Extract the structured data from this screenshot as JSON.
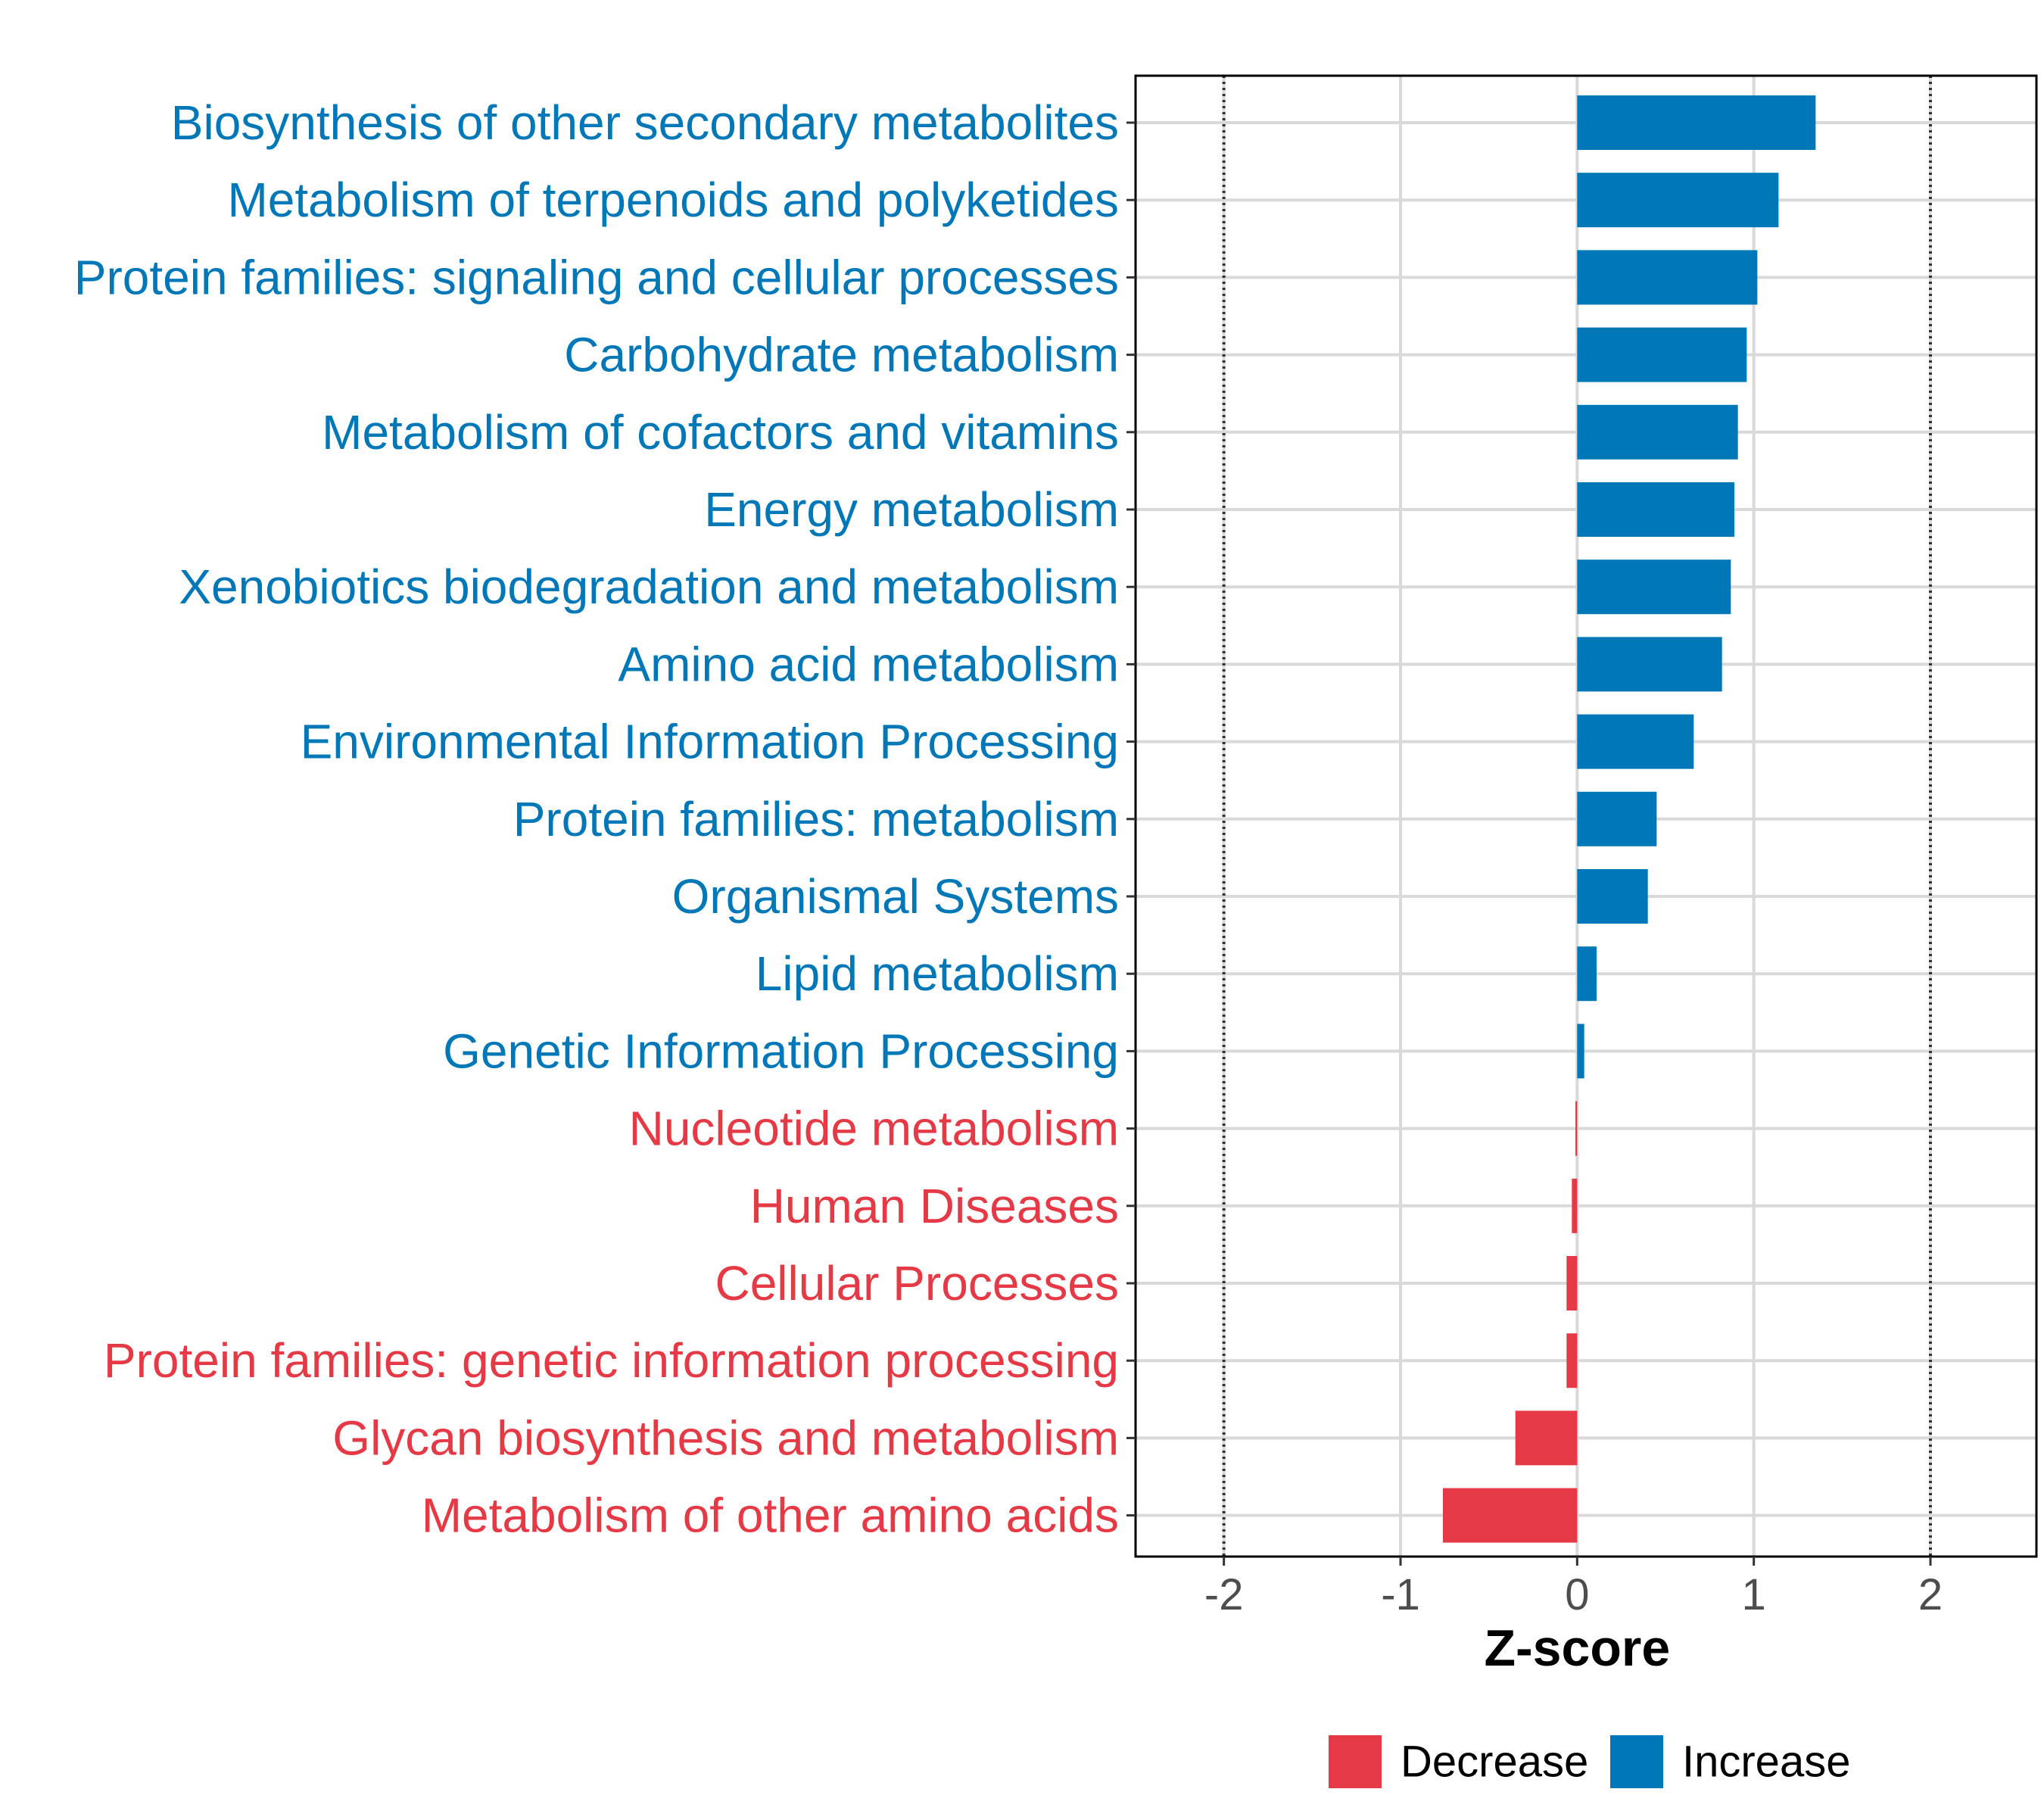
{
  "chart_data": {
    "type": "bar",
    "orientation": "horizontal",
    "title": "",
    "xlabel": "Z-score",
    "ylabel": "",
    "xlim": [
      -2.5,
      2.6
    ],
    "xticks": [
      -2,
      -1,
      0,
      1,
      2
    ],
    "tick_labels": [
      "-2",
      "-1",
      "0",
      "1",
      "2"
    ],
    "reference_lines": [
      -2,
      2
    ],
    "grid": true,
    "categories": [
      "Biosynthesis of other secondary metabolites",
      "Metabolism of terpenoids and polyketides",
      "Protein families: signaling and cellular processes",
      "Carbohydrate metabolism",
      "Metabolism of cofactors and vitamins",
      "Energy metabolism",
      "Xenobiotics biodegradation and metabolism",
      "Amino acid metabolism",
      "Environmental Information Processing",
      "Protein families: metabolism",
      "Organismal Systems",
      "Lipid metabolism",
      "Genetic Information Processing",
      "Nucleotide metabolism",
      "Human Diseases",
      "Cellular Processes",
      "Protein families: genetic information processing",
      "Glycan biosynthesis and metabolism",
      "Metabolism of other amino acids"
    ],
    "values": [
      1.35,
      1.14,
      1.02,
      0.96,
      0.91,
      0.89,
      0.87,
      0.82,
      0.66,
      0.45,
      0.4,
      0.11,
      0.04,
      -0.01,
      -0.03,
      -0.06,
      -0.06,
      -0.35,
      -0.76
    ],
    "legend": {
      "position": "bottom",
      "entries": [
        {
          "label": "Decrease",
          "color": "#E63946"
        },
        {
          "label": "Increase",
          "color": "#0077B6"
        }
      ]
    }
  },
  "colors": {
    "increase": "#0077B6",
    "decrease": "#E63946",
    "grid": "#d9d9d9",
    "axis": "#000000"
  }
}
